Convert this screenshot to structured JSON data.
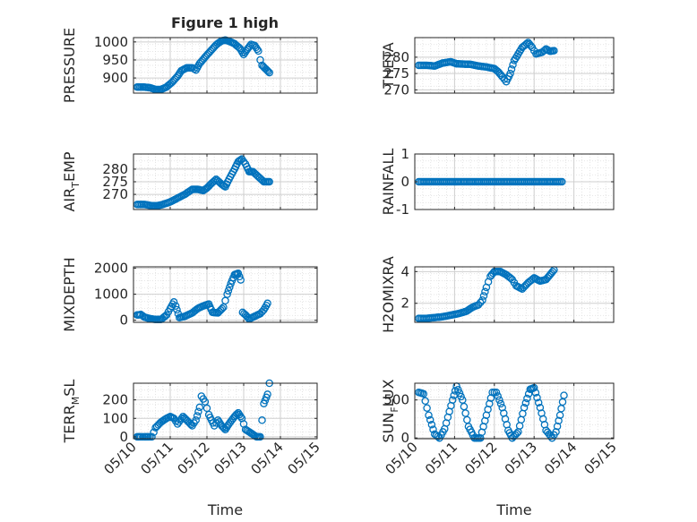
{
  "figure_title": "Figure 1 high",
  "xlabel": "Time",
  "time_ticks": [
    "05/10",
    "05/11",
    "05/12",
    "05/13",
    "05/14",
    "05/15"
  ],
  "marker_color": "#0072BD",
  "chart_data": [
    {
      "type": "scatter",
      "title": "Figure 1 high",
      "ylabel": {
        "main": "PRESSURE",
        "sub": ""
      },
      "xlabel": "",
      "xlim": [
        0,
        5
      ],
      "ylim": [
        858,
        1012
      ],
      "yticks": [
        {
          "v": 900,
          "label": "900"
        },
        {
          "v": 950,
          "label": "950"
        },
        {
          "v": 1000,
          "label": "1000"
        }
      ],
      "keys": [
        [
          0.1,
          875
        ],
        [
          0.25,
          875
        ],
        [
          0.45,
          873
        ],
        [
          0.6,
          868
        ],
        [
          0.75,
          868
        ],
        [
          0.9,
          875
        ],
        [
          1.05,
          888
        ],
        [
          1.2,
          905
        ],
        [
          1.3,
          920
        ],
        [
          1.45,
          928
        ],
        [
          1.6,
          928
        ],
        [
          1.7,
          922
        ],
        [
          1.8,
          940
        ],
        [
          1.95,
          958
        ],
        [
          2.1,
          975
        ],
        [
          2.25,
          992
        ],
        [
          2.4,
          1003
        ],
        [
          2.5,
          1005
        ],
        [
          2.6,
          1002
        ],
        [
          2.75,
          995
        ],
        [
          2.9,
          982
        ],
        [
          3.0,
          965
        ],
        [
          3.1,
          980
        ],
        [
          3.2,
          993
        ],
        [
          3.3,
          990
        ],
        [
          3.4,
          975
        ],
        [
          3.45,
          950
        ],
        [
          3.5,
          935
        ],
        [
          3.6,
          925
        ],
        [
          3.7,
          915
        ]
      ]
    },
    {
      "type": "scatter",
      "title": "",
      "ylabel": {
        "main": "THETA",
        "sub": ""
      },
      "xlabel": "",
      "xlim": [
        0,
        5
      ],
      "ylim": [
        269,
        286
      ],
      "yticks": [
        {
          "v": 270,
          "label": "270"
        },
        {
          "v": 275,
          "label": "275"
        },
        {
          "v": 280,
          "label": "280"
        }
      ],
      "keys": [
        [
          0.1,
          277.5
        ],
        [
          0.3,
          277.5
        ],
        [
          0.5,
          277.3
        ],
        [
          0.7,
          278.2
        ],
        [
          0.9,
          278.6
        ],
        [
          1.05,
          278.0
        ],
        [
          1.2,
          277.9
        ],
        [
          1.4,
          277.8
        ],
        [
          1.6,
          277.3
        ],
        [
          1.8,
          277.0
        ],
        [
          2.0,
          276.5
        ],
        [
          2.1,
          275.5
        ],
        [
          2.2,
          274.0
        ],
        [
          2.3,
          272.5
        ],
        [
          2.4,
          275.0
        ],
        [
          2.5,
          279.0
        ],
        [
          2.6,
          281.0
        ],
        [
          2.7,
          283.0
        ],
        [
          2.85,
          284.5
        ],
        [
          2.95,
          283.0
        ],
        [
          3.05,
          281.0
        ],
        [
          3.2,
          281.5
        ],
        [
          3.3,
          282.5
        ],
        [
          3.4,
          281.8
        ],
        [
          3.5,
          282.0
        ]
      ]
    },
    {
      "type": "scatter",
      "title": "",
      "ylabel": {
        "main": "AIR",
        "sub": "T",
        "rest": "EMP"
      },
      "xlabel": "",
      "xlim": [
        0,
        5
      ],
      "ylim": [
        264,
        286
      ],
      "yticks": [
        {
          "v": 270,
          "label": "270"
        },
        {
          "v": 275,
          "label": "275"
        },
        {
          "v": 280,
          "label": "280"
        }
      ],
      "keys": [
        [
          0.1,
          266
        ],
        [
          0.3,
          266
        ],
        [
          0.5,
          265.5
        ],
        [
          0.65,
          265.5
        ],
        [
          0.8,
          266
        ],
        [
          1.0,
          267
        ],
        [
          1.2,
          268.5
        ],
        [
          1.4,
          270
        ],
        [
          1.6,
          272
        ],
        [
          1.75,
          272
        ],
        [
          1.9,
          271.5
        ],
        [
          2.0,
          272.5
        ],
        [
          2.1,
          274
        ],
        [
          2.25,
          276
        ],
        [
          2.4,
          274
        ],
        [
          2.5,
          273
        ],
        [
          2.6,
          276
        ],
        [
          2.75,
          280
        ],
        [
          2.85,
          283
        ],
        [
          2.95,
          284
        ],
        [
          3.05,
          282
        ],
        [
          3.15,
          279
        ],
        [
          3.25,
          279
        ],
        [
          3.4,
          277
        ],
        [
          3.55,
          275
        ],
        [
          3.7,
          275
        ]
      ]
    },
    {
      "type": "scatter",
      "title": "",
      "ylabel": {
        "main": "RAINFALL",
        "sub": ""
      },
      "xlabel": "",
      "xlim": [
        0,
        5
      ],
      "ylim": [
        -1,
        1
      ],
      "yticks": [
        {
          "v": -1,
          "label": "-1"
        },
        {
          "v": 0,
          "label": "0"
        },
        {
          "v": 1,
          "label": "1"
        }
      ],
      "keys": [
        [
          0.1,
          0
        ],
        [
          3.7,
          0
        ]
      ]
    },
    {
      "type": "scatter",
      "title": "",
      "ylabel": {
        "main": "MIXDEPTH",
        "sub": ""
      },
      "xlabel": "",
      "xlim": [
        0,
        5
      ],
      "ylim": [
        -80,
        2050
      ],
      "yticks": [
        {
          "v": 0,
          "label": "0"
        },
        {
          "v": 1000,
          "label": "1000"
        },
        {
          "v": 2000,
          "label": "2000"
        }
      ],
      "keys": [
        [
          0.1,
          200
        ],
        [
          0.2,
          220
        ],
        [
          0.3,
          120
        ],
        [
          0.45,
          60
        ],
        [
          0.6,
          30
        ],
        [
          0.75,
          30
        ],
        [
          0.9,
          200
        ],
        [
          1.0,
          450
        ],
        [
          1.1,
          700
        ],
        [
          1.15,
          550
        ],
        [
          1.25,
          100
        ],
        [
          1.4,
          150
        ],
        [
          1.6,
          280
        ],
        [
          1.75,
          450
        ],
        [
          1.9,
          550
        ],
        [
          2.05,
          620
        ],
        [
          2.15,
          300
        ],
        [
          2.3,
          280
        ],
        [
          2.45,
          500
        ],
        [
          2.55,
          1000
        ],
        [
          2.65,
          1400
        ],
        [
          2.75,
          1750
        ],
        [
          2.85,
          1800
        ],
        [
          2.92,
          1550
        ],
        [
          2.97,
          300
        ],
        [
          3.05,
          200
        ],
        [
          3.15,
          50
        ],
        [
          3.3,
          150
        ],
        [
          3.45,
          250
        ],
        [
          3.55,
          400
        ],
        [
          3.65,
          650
        ]
      ]
    },
    {
      "type": "scatter",
      "title": "",
      "ylabel": {
        "main": "H2OMIXRA",
        "sub": ""
      },
      "xlabel": "",
      "xlim": [
        0,
        5
      ],
      "ylim": [
        0.8,
        4.3
      ],
      "yticks": [
        {
          "v": 2,
          "label": "2"
        },
        {
          "v": 4,
          "label": "4"
        }
      ],
      "keys": [
        [
          0.1,
          1.05
        ],
        [
          0.3,
          1.05
        ],
        [
          0.5,
          1.1
        ],
        [
          0.7,
          1.15
        ],
        [
          0.9,
          1.25
        ],
        [
          1.1,
          1.35
        ],
        [
          1.3,
          1.5
        ],
        [
          1.45,
          1.75
        ],
        [
          1.6,
          1.9
        ],
        [
          1.7,
          2.2
        ],
        [
          1.8,
          3.0
        ],
        [
          1.9,
          3.7
        ],
        [
          2.0,
          4.0
        ],
        [
          2.15,
          4.0
        ],
        [
          2.3,
          3.8
        ],
        [
          2.45,
          3.5
        ],
        [
          2.55,
          3.1
        ],
        [
          2.7,
          2.9
        ],
        [
          2.85,
          3.3
        ],
        [
          3.0,
          3.6
        ],
        [
          3.15,
          3.4
        ],
        [
          3.3,
          3.5
        ],
        [
          3.4,
          3.8
        ],
        [
          3.5,
          4.1
        ]
      ]
    },
    {
      "type": "scatter",
      "title": "",
      "ylabel": {
        "main": "TERR",
        "sub": "M",
        "rest": "SL"
      },
      "xlabel": "Time",
      "xlim": [
        0,
        5
      ],
      "ylim": [
        -10,
        290
      ],
      "yticks": [
        {
          "v": 0,
          "label": "0"
        },
        {
          "v": 100,
          "label": "100"
        },
        {
          "v": 200,
          "label": "200"
        }
      ],
      "keys": [
        [
          0.1,
          0
        ],
        [
          0.2,
          0
        ],
        [
          0.3,
          0
        ],
        [
          0.4,
          0
        ],
        [
          0.5,
          0
        ],
        [
          0.6,
          50
        ],
        [
          0.75,
          80
        ],
        [
          0.9,
          100
        ],
        [
          1.0,
          110
        ],
        [
          1.1,
          100
        ],
        [
          1.2,
          70
        ],
        [
          1.35,
          110
        ],
        [
          1.5,
          80
        ],
        [
          1.6,
          60
        ],
        [
          1.7,
          90
        ],
        [
          1.8,
          160
        ],
        [
          1.85,
          220
        ],
        [
          1.95,
          190
        ],
        [
          2.05,
          120
        ],
        [
          2.2,
          60
        ],
        [
          2.3,
          90
        ],
        [
          2.4,
          60
        ],
        [
          2.5,
          40
        ],
        [
          2.6,
          70
        ],
        [
          2.75,
          110
        ],
        [
          2.85,
          130
        ],
        [
          2.95,
          100
        ],
        [
          3.05,
          40
        ],
        [
          3.2,
          20
        ],
        [
          3.35,
          0
        ],
        [
          3.45,
          0
        ],
        [
          3.55,
          180
        ],
        [
          3.65,
          230
        ],
        [
          3.7,
          290
        ]
      ]
    },
    {
      "type": "scatter",
      "title": "",
      "ylabel": {
        "main": "SUN",
        "sub": "F",
        "rest": "LUX"
      },
      "xlabel": "Time",
      "xlim": [
        0,
        5
      ],
      "ylim": [
        -10,
        720
      ],
      "yticks": [
        {
          "v": 0,
          "label": "0"
        },
        {
          "v": 500,
          "label": "500"
        }
      ],
      "keys": [
        [
          0.1,
          600
        ],
        [
          0.22,
          580
        ],
        [
          0.35,
          300
        ],
        [
          0.5,
          50
        ],
        [
          0.62,
          0
        ],
        [
          0.75,
          120
        ],
        [
          0.95,
          500
        ],
        [
          1.05,
          680
        ],
        [
          1.2,
          500
        ],
        [
          1.35,
          150
        ],
        [
          1.5,
          0
        ],
        [
          1.65,
          0
        ],
        [
          1.8,
          300
        ],
        [
          1.95,
          600
        ],
        [
          2.05,
          600
        ],
        [
          2.2,
          400
        ],
        [
          2.35,
          100
        ],
        [
          2.45,
          0
        ],
        [
          2.6,
          80
        ],
        [
          2.75,
          400
        ],
        [
          2.9,
          640
        ],
        [
          3.0,
          660
        ],
        [
          3.15,
          400
        ],
        [
          3.3,
          100
        ],
        [
          3.45,
          0
        ],
        [
          3.55,
          80
        ],
        [
          3.65,
          300
        ],
        [
          3.75,
          560
        ]
      ]
    }
  ]
}
